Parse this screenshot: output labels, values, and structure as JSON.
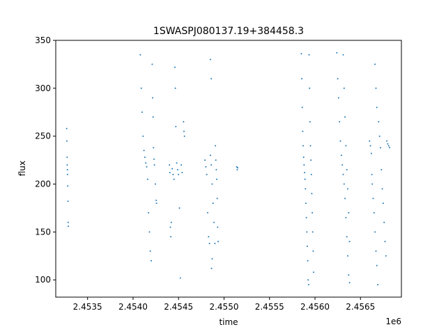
{
  "chart_data": {
    "type": "scatter",
    "title": "1SWASPJ080137.19+384458.3",
    "xlabel": "time",
    "ylabel": "flux",
    "x_offset_label": "1e6",
    "xlim": [
      2453150,
      2456950
    ],
    "ylim": [
      82,
      350
    ],
    "xticks": [
      2453500,
      2454000,
      2454500,
      2455000,
      2455500,
      2456000,
      2456500
    ],
    "xtick_labels": [
      "2.4535",
      "2.4540",
      "2.4545",
      "2.4550",
      "2.4555",
      "2.4560",
      "2.4565"
    ],
    "yticks": [
      100,
      150,
      200,
      250,
      300,
      350
    ],
    "ytick_labels": [
      "100",
      "150",
      "200",
      "250",
      "300",
      "350"
    ],
    "grid": false,
    "marker_color": "#1f77b4",
    "series": [
      {
        "values": [
          {
            "x": 2453270,
            "y": 258
          },
          {
            "x": 2453272,
            "y": 245
          },
          {
            "x": 2453275,
            "y": 228
          },
          {
            "x": 2453276,
            "y": 220
          },
          {
            "x": 2453278,
            "y": 215
          },
          {
            "x": 2453280,
            "y": 210
          },
          {
            "x": 2453282,
            "y": 198
          },
          {
            "x": 2453284,
            "y": 182
          },
          {
            "x": 2453286,
            "y": 160
          },
          {
            "x": 2453288,
            "y": 156
          },
          {
            "x": 2454080,
            "y": 335
          },
          {
            "x": 2454090,
            "y": 300
          },
          {
            "x": 2454100,
            "y": 275
          },
          {
            "x": 2454110,
            "y": 250
          },
          {
            "x": 2454120,
            "y": 235
          },
          {
            "x": 2454130,
            "y": 228
          },
          {
            "x": 2454140,
            "y": 222
          },
          {
            "x": 2454150,
            "y": 218
          },
          {
            "x": 2454160,
            "y": 205
          },
          {
            "x": 2454170,
            "y": 170
          },
          {
            "x": 2454180,
            "y": 150
          },
          {
            "x": 2454190,
            "y": 130
          },
          {
            "x": 2454200,
            "y": 120
          },
          {
            "x": 2454210,
            "y": 325
          },
          {
            "x": 2454215,
            "y": 290
          },
          {
            "x": 2454220,
            "y": 270
          },
          {
            "x": 2454225,
            "y": 238
          },
          {
            "x": 2454230,
            "y": 226
          },
          {
            "x": 2454235,
            "y": 220
          },
          {
            "x": 2454245,
            "y": 200
          },
          {
            "x": 2454255,
            "y": 183
          },
          {
            "x": 2454258,
            "y": 180
          },
          {
            "x": 2454400,
            "y": 220
          },
          {
            "x": 2454405,
            "y": 212
          },
          {
            "x": 2454410,
            "y": 155
          },
          {
            "x": 2454415,
            "y": 145
          },
          {
            "x": 2454420,
            "y": 160
          },
          {
            "x": 2454430,
            "y": 216
          },
          {
            "x": 2454440,
            "y": 210
          },
          {
            "x": 2454450,
            "y": 205
          },
          {
            "x": 2454460,
            "y": 322
          },
          {
            "x": 2454465,
            "y": 300
          },
          {
            "x": 2454470,
            "y": 260
          },
          {
            "x": 2454480,
            "y": 222
          },
          {
            "x": 2454490,
            "y": 215
          },
          {
            "x": 2454500,
            "y": 210
          },
          {
            "x": 2454510,
            "y": 175
          },
          {
            "x": 2454520,
            "y": 102
          },
          {
            "x": 2454530,
            "y": 220
          },
          {
            "x": 2454540,
            "y": 212
          },
          {
            "x": 2454555,
            "y": 265
          },
          {
            "x": 2454560,
            "y": 255
          },
          {
            "x": 2454565,
            "y": 250
          },
          {
            "x": 2454790,
            "y": 225
          },
          {
            "x": 2454800,
            "y": 218
          },
          {
            "x": 2454810,
            "y": 210
          },
          {
            "x": 2454820,
            "y": 170
          },
          {
            "x": 2454830,
            "y": 145
          },
          {
            "x": 2454840,
            "y": 138
          },
          {
            "x": 2454850,
            "y": 230
          },
          {
            "x": 2454860,
            "y": 220
          },
          {
            "x": 2454870,
            "y": 200
          },
          {
            "x": 2454880,
            "y": 180
          },
          {
            "x": 2454890,
            "y": 160
          },
          {
            "x": 2454900,
            "y": 138
          },
          {
            "x": 2454905,
            "y": 240
          },
          {
            "x": 2454910,
            "y": 225
          },
          {
            "x": 2454915,
            "y": 215
          },
          {
            "x": 2454920,
            "y": 205
          },
          {
            "x": 2454925,
            "y": 185
          },
          {
            "x": 2454930,
            "y": 155
          },
          {
            "x": 2454935,
            "y": 140
          },
          {
            "x": 2454850,
            "y": 330
          },
          {
            "x": 2454860,
            "y": 310
          },
          {
            "x": 2454862,
            "y": 112
          },
          {
            "x": 2454870,
            "y": 122
          },
          {
            "x": 2455140,
            "y": 218
          },
          {
            "x": 2455145,
            "y": 215
          },
          {
            "x": 2455150,
            "y": 217
          },
          {
            "x": 2455850,
            "y": 336
          },
          {
            "x": 2455855,
            "y": 310
          },
          {
            "x": 2455860,
            "y": 280
          },
          {
            "x": 2455865,
            "y": 255
          },
          {
            "x": 2455870,
            "y": 240
          },
          {
            "x": 2455875,
            "y": 228
          },
          {
            "x": 2455880,
            "y": 220
          },
          {
            "x": 2455885,
            "y": 212
          },
          {
            "x": 2455890,
            "y": 205
          },
          {
            "x": 2455895,
            "y": 195
          },
          {
            "x": 2455900,
            "y": 180
          },
          {
            "x": 2455905,
            "y": 165
          },
          {
            "x": 2455910,
            "y": 150
          },
          {
            "x": 2455915,
            "y": 135
          },
          {
            "x": 2455920,
            "y": 120
          },
          {
            "x": 2455925,
            "y": 100
          },
          {
            "x": 2455930,
            "y": 95
          },
          {
            "x": 2455935,
            "y": 335
          },
          {
            "x": 2455940,
            "y": 300
          },
          {
            "x": 2455945,
            "y": 265
          },
          {
            "x": 2455950,
            "y": 240
          },
          {
            "x": 2455955,
            "y": 225
          },
          {
            "x": 2455960,
            "y": 210
          },
          {
            "x": 2455965,
            "y": 190
          },
          {
            "x": 2455970,
            "y": 170
          },
          {
            "x": 2455975,
            "y": 150
          },
          {
            "x": 2455980,
            "y": 130
          },
          {
            "x": 2455985,
            "y": 108
          },
          {
            "x": 2456240,
            "y": 337
          },
          {
            "x": 2456250,
            "y": 310
          },
          {
            "x": 2456260,
            "y": 290
          },
          {
            "x": 2456270,
            "y": 265
          },
          {
            "x": 2456280,
            "y": 245
          },
          {
            "x": 2456290,
            "y": 230
          },
          {
            "x": 2456300,
            "y": 220
          },
          {
            "x": 2456310,
            "y": 210
          },
          {
            "x": 2456320,
            "y": 200
          },
          {
            "x": 2456330,
            "y": 185
          },
          {
            "x": 2456340,
            "y": 165
          },
          {
            "x": 2456350,
            "y": 145
          },
          {
            "x": 2456360,
            "y": 125
          },
          {
            "x": 2456370,
            "y": 105
          },
          {
            "x": 2456380,
            "y": 97
          },
          {
            "x": 2456310,
            "y": 335
          },
          {
            "x": 2456320,
            "y": 300
          },
          {
            "x": 2456330,
            "y": 270
          },
          {
            "x": 2456340,
            "y": 240
          },
          {
            "x": 2456350,
            "y": 215
          },
          {
            "x": 2456360,
            "y": 195
          },
          {
            "x": 2456370,
            "y": 170
          },
          {
            "x": 2456380,
            "y": 140
          },
          {
            "x": 2456600,
            "y": 245
          },
          {
            "x": 2456610,
            "y": 240
          },
          {
            "x": 2456620,
            "y": 232
          },
          {
            "x": 2456625,
            "y": 210
          },
          {
            "x": 2456630,
            "y": 200
          },
          {
            "x": 2456640,
            "y": 185
          },
          {
            "x": 2456650,
            "y": 170
          },
          {
            "x": 2456660,
            "y": 150
          },
          {
            "x": 2456670,
            "y": 130
          },
          {
            "x": 2456680,
            "y": 115
          },
          {
            "x": 2456690,
            "y": 95
          },
          {
            "x": 2456660,
            "y": 325
          },
          {
            "x": 2456670,
            "y": 300
          },
          {
            "x": 2456680,
            "y": 280
          },
          {
            "x": 2456700,
            "y": 265
          },
          {
            "x": 2456710,
            "y": 250
          },
          {
            "x": 2456720,
            "y": 238
          },
          {
            "x": 2456730,
            "y": 215
          },
          {
            "x": 2456740,
            "y": 195
          },
          {
            "x": 2456750,
            "y": 180
          },
          {
            "x": 2456760,
            "y": 160
          },
          {
            "x": 2456770,
            "y": 140
          },
          {
            "x": 2456780,
            "y": 125
          },
          {
            "x": 2456790,
            "y": 245
          },
          {
            "x": 2456800,
            "y": 242
          },
          {
            "x": 2456810,
            "y": 240
          },
          {
            "x": 2456820,
            "y": 238
          }
        ]
      }
    ]
  }
}
